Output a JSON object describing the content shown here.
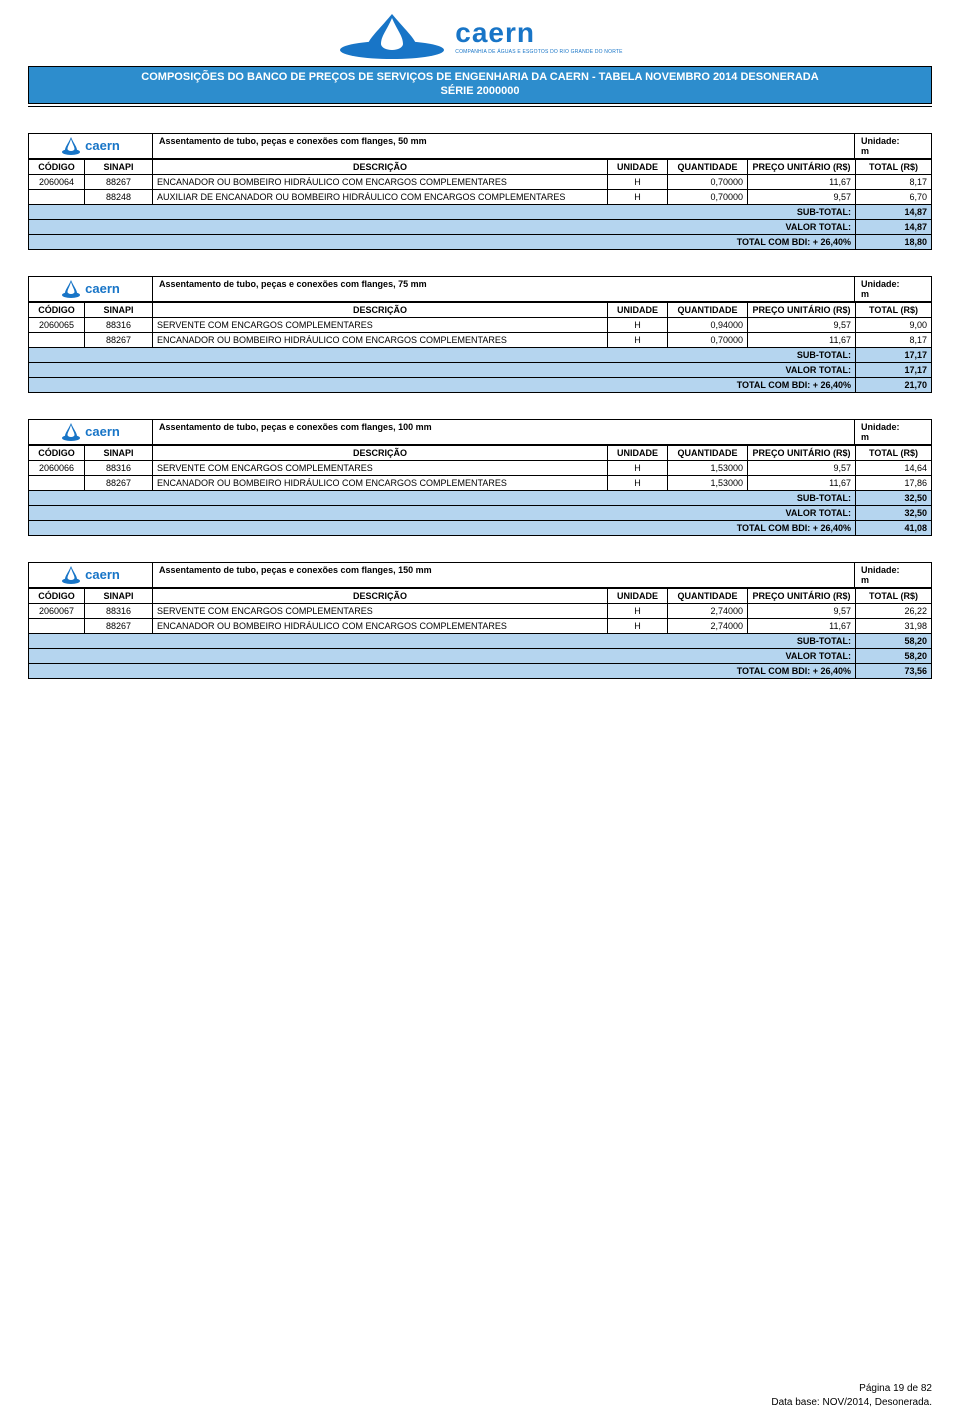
{
  "colors": {
    "banner_bg": "#2d8dcd",
    "banner_fg": "#ffffff",
    "sum_bg": "#b5d5ef",
    "brand": "#1875c7",
    "border": "#000000"
  },
  "logo": {
    "brand": "caern",
    "subtitle": "COMPANHIA DE ÁGUAS E ESGOTOS DO RIO GRANDE DO NORTE"
  },
  "banner": {
    "line1": "COMPOSIÇÕES DO BANCO DE PREÇOS DE SERVIÇOS DE ENGENHARIA DA CAERN - TABELA NOVEMBRO 2014 DESONERADA",
    "line2": "SÉRIE 2000000"
  },
  "headers": {
    "codigo": "CÓDIGO",
    "sinapi": "SINAPI",
    "descricao": "DESCRIÇÃO",
    "unidade": "UNIDADE",
    "quantidade": "QUANTIDADE",
    "preco_unit": "PREÇO UNITÁRIO (R$)",
    "total": "TOTAL (R$)",
    "unidade_label": "Unidade:"
  },
  "summary_labels": {
    "subtotal": "SUB-TOTAL:",
    "valor_total": "VALOR TOTAL:",
    "total_bdi": "TOTAL COM BDI: + 26,40%"
  },
  "blocks": [
    {
      "title": "Assentamento de tubo, peças e conexões com flanges,  50 mm",
      "unit": "m",
      "rows": [
        {
          "codigo": "2060064",
          "sinapi": "88267",
          "desc": "ENCANADOR OU BOMBEIRO HIDRÁULICO COM ENCARGOS COMPLEMENTARES",
          "un": "H",
          "qtd": "0,70000",
          "pu": "11,67",
          "tot": "8,17"
        },
        {
          "codigo": "",
          "sinapi": "88248",
          "desc": "AUXILIAR DE ENCANADOR OU BOMBEIRO HIDRÁULICO COM ENCARGOS COMPLEMENTARES",
          "un": "H",
          "qtd": "0,70000",
          "pu": "9,57",
          "tot": "6,70"
        }
      ],
      "subtotal": "14,87",
      "valor_total": "14,87",
      "total_bdi": "18,80"
    },
    {
      "title": "Assentamento de tubo, peças e conexões com flanges,  75 mm",
      "unit": "m",
      "rows": [
        {
          "codigo": "2060065",
          "sinapi": "88316",
          "desc": "SERVENTE COM ENCARGOS COMPLEMENTARES",
          "un": "H",
          "qtd": "0,94000",
          "pu": "9,57",
          "tot": "9,00"
        },
        {
          "codigo": "",
          "sinapi": "88267",
          "desc": "ENCANADOR OU BOMBEIRO HIDRÁULICO COM ENCARGOS COMPLEMENTARES",
          "un": "H",
          "qtd": "0,70000",
          "pu": "11,67",
          "tot": "8,17"
        }
      ],
      "subtotal": "17,17",
      "valor_total": "17,17",
      "total_bdi": "21,70"
    },
    {
      "title": "Assentamento de tubo, peças e conexões com flanges,  100 mm",
      "unit": "m",
      "rows": [
        {
          "codigo": "2060066",
          "sinapi": "88316",
          "desc": "SERVENTE COM ENCARGOS COMPLEMENTARES",
          "un": "H",
          "qtd": "1,53000",
          "pu": "9,57",
          "tot": "14,64"
        },
        {
          "codigo": "",
          "sinapi": "88267",
          "desc": "ENCANADOR OU BOMBEIRO HIDRÁULICO COM ENCARGOS COMPLEMENTARES",
          "un": "H",
          "qtd": "1,53000",
          "pu": "11,67",
          "tot": "17,86"
        }
      ],
      "subtotal": "32,50",
      "valor_total": "32,50",
      "total_bdi": "41,08"
    },
    {
      "title": "Assentamento de tubo, peças e conexões com flanges,  150 mm",
      "unit": "m",
      "rows": [
        {
          "codigo": "2060067",
          "sinapi": "88316",
          "desc": "SERVENTE COM ENCARGOS COMPLEMENTARES",
          "un": "H",
          "qtd": "2,74000",
          "pu": "9,57",
          "tot": "26,22"
        },
        {
          "codigo": "",
          "sinapi": "88267",
          "desc": "ENCANADOR OU BOMBEIRO HIDRÁULICO COM ENCARGOS COMPLEMENTARES",
          "un": "H",
          "qtd": "2,74000",
          "pu": "11,67",
          "tot": "31,98"
        }
      ],
      "subtotal": "58,20",
      "valor_total": "58,20",
      "total_bdi": "73,56"
    }
  ],
  "footer": {
    "page": "Página 19 de 82",
    "base": "Data base: NOV/2014, Desonerada."
  }
}
